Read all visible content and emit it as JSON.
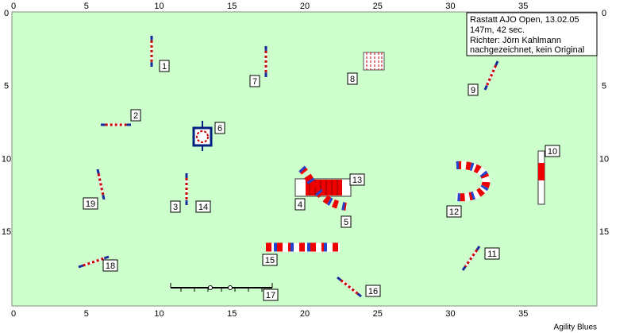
{
  "x_ticks": [
    0,
    5,
    10,
    15,
    20,
    25,
    30,
    35
  ],
  "y_ticks": [
    0,
    5,
    10,
    15
  ],
  "info": [
    "Rastatt AJO Open, 13.02.05",
    "147m, 42 sec.",
    "Richter: Jörn Kahlmann",
    "nachgezeichnet, kein Original"
  ],
  "obstacles": [
    "1",
    "2",
    "3",
    "4",
    "5",
    "6",
    "7",
    "8",
    "9",
    "10",
    "11",
    "12",
    "13",
    "14",
    "15",
    "16",
    "17",
    "18",
    "19"
  ],
  "footer": "Agility Blues"
}
